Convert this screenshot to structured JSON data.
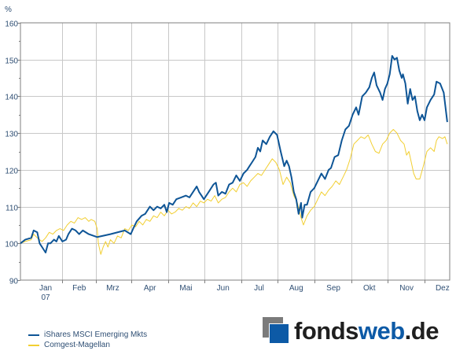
{
  "chart_data": {
    "type": "line",
    "ylabel": "%",
    "ylim": [
      90,
      160
    ],
    "yticks": [
      90,
      100,
      110,
      120,
      130,
      140,
      150,
      160
    ],
    "xlim": [
      "2006-12-25",
      "2007-12-18"
    ],
    "xticks": [
      {
        "label": "Jan",
        "sub": "07",
        "date": "2007-01-15"
      },
      {
        "label": "Feb",
        "sub": "",
        "date": "2007-02-12"
      },
      {
        "label": "Mrz",
        "sub": "",
        "date": "2007-03-12"
      },
      {
        "label": "Apr",
        "sub": "",
        "date": "2007-04-12"
      },
      {
        "label": "Mai",
        "sub": "",
        "date": "2007-05-12"
      },
      {
        "label": "Jun",
        "sub": "",
        "date": "2007-06-12"
      },
      {
        "label": "Jul",
        "sub": "",
        "date": "2007-07-12"
      },
      {
        "label": "Aug",
        "sub": "",
        "date": "2007-08-12"
      },
      {
        "label": "Sep",
        "sub": "",
        "date": "2007-09-12"
      },
      {
        "label": "Okt",
        "sub": "",
        "date": "2007-10-12"
      },
      {
        "label": "Nov",
        "sub": "",
        "date": "2007-11-12"
      },
      {
        "label": "Dez",
        "sub": "",
        "date": "2007-12-12"
      }
    ],
    "grid": true,
    "legend_position": "bottom-left",
    "series": [
      {
        "name": "iShares MSCI Emerging Mkts",
        "color": "#0e5596",
        "points": [
          [
            "2006-12-25",
            100
          ],
          [
            "2006-12-29",
            101
          ],
          [
            "2007-01-03",
            101.5
          ],
          [
            "2007-01-05",
            103.5
          ],
          [
            "2007-01-08",
            103
          ],
          [
            "2007-01-10",
            100
          ],
          [
            "2007-01-12",
            99
          ],
          [
            "2007-01-15",
            97.5
          ],
          [
            "2007-01-17",
            100
          ],
          [
            "2007-01-19",
            100
          ],
          [
            "2007-01-22",
            101
          ],
          [
            "2007-01-24",
            100.5
          ],
          [
            "2007-01-26",
            102
          ],
          [
            "2007-01-29",
            100.5
          ],
          [
            "2007-02-01",
            101
          ],
          [
            "2007-02-03",
            102.5
          ],
          [
            "2007-02-06",
            104
          ],
          [
            "2007-02-09",
            103.5
          ],
          [
            "2007-02-12",
            102.5
          ],
          [
            "2007-02-15",
            103.5
          ],
          [
            "2007-02-20",
            102.5
          ],
          [
            "2007-02-27",
            101.7
          ],
          [
            "2007-03-10",
            102.5
          ],
          [
            "2007-03-22",
            103.5
          ],
          [
            "2007-03-27",
            102.5
          ],
          [
            "2007-03-29",
            104
          ],
          [
            "2007-04-01",
            106
          ],
          [
            "2007-04-05",
            107.5
          ],
          [
            "2007-04-08",
            108
          ],
          [
            "2007-04-12",
            110
          ],
          [
            "2007-04-15",
            109
          ],
          [
            "2007-04-18",
            110
          ],
          [
            "2007-04-21",
            109.5
          ],
          [
            "2007-04-24",
            110.5
          ],
          [
            "2007-04-26",
            108.5
          ],
          [
            "2007-04-28",
            111
          ],
          [
            "2007-05-01",
            110.5
          ],
          [
            "2007-05-04",
            112
          ],
          [
            "2007-05-08",
            112.5
          ],
          [
            "2007-05-12",
            113
          ],
          [
            "2007-05-15",
            112.5
          ],
          [
            "2007-05-18",
            114
          ],
          [
            "2007-05-21",
            115.5
          ],
          [
            "2007-05-23",
            114
          ],
          [
            "2007-05-25",
            113
          ],
          [
            "2007-05-27",
            112
          ],
          [
            "2007-05-29",
            113
          ],
          [
            "2007-06-01",
            114.5
          ],
          [
            "2007-06-04",
            116
          ],
          [
            "2007-06-06",
            116.5
          ],
          [
            "2007-06-08",
            113
          ],
          [
            "2007-06-11",
            114
          ],
          [
            "2007-06-14",
            113.5
          ],
          [
            "2007-06-17",
            116
          ],
          [
            "2007-06-20",
            116.5
          ],
          [
            "2007-06-23",
            118.5
          ],
          [
            "2007-06-26",
            117
          ],
          [
            "2007-06-29",
            119
          ],
          [
            "2007-07-02",
            120
          ],
          [
            "2007-07-04",
            121
          ],
          [
            "2007-07-06",
            122
          ],
          [
            "2007-07-09",
            123.5
          ],
          [
            "2007-07-11",
            126
          ],
          [
            "2007-07-13",
            125
          ],
          [
            "2007-07-15",
            128
          ],
          [
            "2007-07-18",
            127
          ],
          [
            "2007-07-21",
            129
          ],
          [
            "2007-07-24",
            130.5
          ],
          [
            "2007-07-27",
            129.5
          ],
          [
            "2007-07-30",
            125
          ],
          [
            "2007-08-02",
            121
          ],
          [
            "2007-08-04",
            122.5
          ],
          [
            "2007-08-06",
            121
          ],
          [
            "2007-08-08",
            118
          ],
          [
            "2007-08-10",
            114
          ],
          [
            "2007-08-12",
            112
          ],
          [
            "2007-08-14",
            108
          ],
          [
            "2007-08-16",
            111
          ],
          [
            "2007-08-17",
            107
          ],
          [
            "2007-08-19",
            110.5
          ],
          [
            "2007-08-21",
            110.5
          ],
          [
            "2007-08-24",
            114
          ],
          [
            "2007-08-27",
            115
          ],
          [
            "2007-08-30",
            117
          ],
          [
            "2007-09-02",
            119
          ],
          [
            "2007-09-05",
            117.5
          ],
          [
            "2007-09-08",
            120
          ],
          [
            "2007-09-10",
            120.5
          ],
          [
            "2007-09-13",
            123.5
          ],
          [
            "2007-09-16",
            124
          ],
          [
            "2007-09-19",
            128
          ],
          [
            "2007-09-22",
            131
          ],
          [
            "2007-09-25",
            132
          ],
          [
            "2007-09-28",
            135
          ],
          [
            "2007-10-01",
            137
          ],
          [
            "2007-10-03",
            135
          ],
          [
            "2007-10-06",
            140
          ],
          [
            "2007-10-09",
            141
          ],
          [
            "2007-10-12",
            142.5
          ],
          [
            "2007-10-14",
            145
          ],
          [
            "2007-10-16",
            146.5
          ],
          [
            "2007-10-18",
            143
          ],
          [
            "2007-10-21",
            141
          ],
          [
            "2007-10-23",
            139
          ],
          [
            "2007-10-25",
            142
          ],
          [
            "2007-10-27",
            143.5
          ],
          [
            "2007-10-29",
            146
          ],
          [
            "2007-10-31",
            151
          ],
          [
            "2007-11-02",
            150
          ],
          [
            "2007-11-04",
            150.5
          ],
          [
            "2007-11-06",
            147
          ],
          [
            "2007-11-08",
            145
          ],
          [
            "2007-11-09",
            146
          ],
          [
            "2007-11-11",
            143.5
          ],
          [
            "2007-11-13",
            138
          ],
          [
            "2007-11-15",
            142
          ],
          [
            "2007-11-17",
            139
          ],
          [
            "2007-11-19",
            140
          ],
          [
            "2007-11-21",
            136
          ],
          [
            "2007-11-23",
            133.5
          ],
          [
            "2007-11-25",
            135
          ],
          [
            "2007-11-27",
            133.5
          ],
          [
            "2007-11-29",
            137
          ],
          [
            "2007-12-02",
            139
          ],
          [
            "2007-12-05",
            140.5
          ],
          [
            "2007-12-07",
            144
          ],
          [
            "2007-12-10",
            143.5
          ],
          [
            "2007-12-13",
            141
          ],
          [
            "2007-12-16",
            133
          ]
        ]
      },
      {
        "name": "Comgest-Magellan",
        "color": "#f2cf32",
        "points": [
          [
            "2006-12-25",
            100
          ],
          [
            "2006-12-29",
            100.5
          ],
          [
            "2007-01-03",
            101
          ],
          [
            "2007-01-05",
            102.5
          ],
          [
            "2007-01-08",
            101.5
          ],
          [
            "2007-01-10",
            101
          ],
          [
            "2007-01-12",
            100.5
          ],
          [
            "2007-01-15",
            101.5
          ],
          [
            "2007-01-18",
            103
          ],
          [
            "2007-01-21",
            102.5
          ],
          [
            "2007-01-24",
            103.5
          ],
          [
            "2007-01-27",
            104
          ],
          [
            "2007-01-30",
            103.5
          ],
          [
            "2007-02-02",
            105
          ],
          [
            "2007-02-05",
            106
          ],
          [
            "2007-02-08",
            105.5
          ],
          [
            "2007-02-11",
            107
          ],
          [
            "2007-02-14",
            106.5
          ],
          [
            "2007-02-17",
            107
          ],
          [
            "2007-02-20",
            106
          ],
          [
            "2007-02-22",
            106.5
          ],
          [
            "2007-02-25",
            106
          ],
          [
            "2007-02-27",
            104
          ],
          [
            "2007-02-28",
            100
          ],
          [
            "2007-03-02",
            97
          ],
          [
            "2007-03-04",
            99
          ],
          [
            "2007-03-06",
            100.5
          ],
          [
            "2007-03-08",
            99
          ],
          [
            "2007-03-10",
            101
          ],
          [
            "2007-03-13",
            100
          ],
          [
            "2007-03-16",
            102
          ],
          [
            "2007-03-19",
            101.5
          ],
          [
            "2007-03-22",
            104
          ],
          [
            "2007-03-25",
            103.5
          ],
          [
            "2007-03-28",
            105
          ],
          [
            "2007-03-31",
            104.5
          ],
          [
            "2007-04-03",
            106
          ],
          [
            "2007-04-06",
            105
          ],
          [
            "2007-04-09",
            106.5
          ],
          [
            "2007-04-12",
            106
          ],
          [
            "2007-04-15",
            107.5
          ],
          [
            "2007-04-18",
            107
          ],
          [
            "2007-04-21",
            108.5
          ],
          [
            "2007-04-24",
            107.5
          ],
          [
            "2007-04-27",
            109
          ],
          [
            "2007-04-30",
            108
          ],
          [
            "2007-05-03",
            108.5
          ],
          [
            "2007-05-06",
            109.5
          ],
          [
            "2007-05-09",
            109
          ],
          [
            "2007-05-12",
            110
          ],
          [
            "2007-05-15",
            109.5
          ],
          [
            "2007-05-18",
            111
          ],
          [
            "2007-05-21",
            110
          ],
          [
            "2007-05-24",
            111.5
          ],
          [
            "2007-05-27",
            111
          ],
          [
            "2007-05-30",
            112
          ],
          [
            "2007-06-02",
            111.5
          ],
          [
            "2007-06-05",
            113
          ],
          [
            "2007-06-08",
            111
          ],
          [
            "2007-06-11",
            112
          ],
          [
            "2007-06-14",
            112.5
          ],
          [
            "2007-06-17",
            114
          ],
          [
            "2007-06-20",
            115
          ],
          [
            "2007-06-23",
            114
          ],
          [
            "2007-06-26",
            116
          ],
          [
            "2007-06-29",
            116.5
          ],
          [
            "2007-07-02",
            115.5
          ],
          [
            "2007-07-05",
            117
          ],
          [
            "2007-07-08",
            118
          ],
          [
            "2007-07-11",
            119
          ],
          [
            "2007-07-14",
            118.5
          ],
          [
            "2007-07-17",
            120
          ],
          [
            "2007-07-20",
            121.5
          ],
          [
            "2007-07-23",
            123
          ],
          [
            "2007-07-26",
            122
          ],
          [
            "2007-07-29",
            120
          ],
          [
            "2007-08-01",
            116
          ],
          [
            "2007-08-04",
            118
          ],
          [
            "2007-08-07",
            116.5
          ],
          [
            "2007-08-10",
            113
          ],
          [
            "2007-08-13",
            111
          ],
          [
            "2007-08-16",
            107
          ],
          [
            "2007-08-18",
            105
          ],
          [
            "2007-08-21",
            107.5
          ],
          [
            "2007-08-24",
            109
          ],
          [
            "2007-08-27",
            110
          ],
          [
            "2007-08-30",
            112
          ],
          [
            "2007-09-02",
            114
          ],
          [
            "2007-09-05",
            113
          ],
          [
            "2007-09-08",
            114.5
          ],
          [
            "2007-09-11",
            115.5
          ],
          [
            "2007-09-14",
            117
          ],
          [
            "2007-09-17",
            116
          ],
          [
            "2007-09-20",
            118
          ],
          [
            "2007-09-23",
            120
          ],
          [
            "2007-09-26",
            123
          ],
          [
            "2007-09-29",
            127
          ],
          [
            "2007-10-02",
            128
          ],
          [
            "2007-10-05",
            129
          ],
          [
            "2007-10-08",
            128.5
          ],
          [
            "2007-10-11",
            129.5
          ],
          [
            "2007-10-14",
            127
          ],
          [
            "2007-10-17",
            125
          ],
          [
            "2007-10-20",
            124.5
          ],
          [
            "2007-10-23",
            127
          ],
          [
            "2007-10-26",
            128
          ],
          [
            "2007-10-29",
            130
          ],
          [
            "2007-11-01",
            131
          ],
          [
            "2007-11-04",
            130
          ],
          [
            "2007-11-07",
            128
          ],
          [
            "2007-11-10",
            127
          ],
          [
            "2007-11-12",
            124
          ],
          [
            "2007-11-14",
            125
          ],
          [
            "2007-11-16",
            122
          ],
          [
            "2007-11-18",
            119
          ],
          [
            "2007-11-20",
            117.5
          ],
          [
            "2007-11-23",
            117.5
          ],
          [
            "2007-11-26",
            121
          ],
          [
            "2007-11-29",
            125
          ],
          [
            "2007-12-02",
            126
          ],
          [
            "2007-12-05",
            125
          ],
          [
            "2007-12-07",
            128
          ],
          [
            "2007-12-09",
            129
          ],
          [
            "2007-12-12",
            128.5
          ],
          [
            "2007-12-14",
            129
          ],
          [
            "2007-12-16",
            127
          ]
        ]
      }
    ]
  },
  "brand": {
    "logo_part1": "fonds",
    "logo_part2": "web",
    "logo_part3": ".de"
  }
}
